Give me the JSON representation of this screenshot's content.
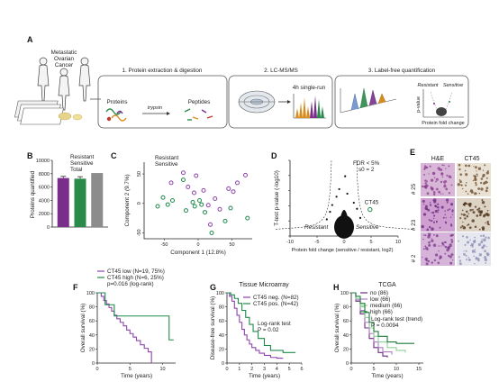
{
  "figure": {
    "panel_labels": [
      "A",
      "B",
      "C",
      "D",
      "E",
      "F",
      "G",
      "H"
    ],
    "A": {
      "cohort_label": [
        "Metastatic",
        "Ovarian",
        "Cancer"
      ],
      "steps": [
        {
          "title": "1. Protein extraction & digestion",
          "labels": [
            "Proteins",
            "trypsin",
            "Peptides"
          ]
        },
        {
          "title": "2. LC-MS/MS",
          "labels": [
            "4h single-run"
          ]
        },
        {
          "title": "3. Label-free quantification",
          "labels": [
            "Resistant",
            "Sensitive",
            "Protein fold change",
            "p-value"
          ]
        }
      ]
    },
    "E": {
      "headers": [
        "H&E",
        "CT45"
      ],
      "rows": [
        "# 25",
        "# 23",
        "# 2"
      ]
    }
  },
  "chart_data": [
    {
      "panel": "B",
      "type": "bar",
      "categories": [
        "Resistant",
        "Sensitive",
        "Total"
      ],
      "values": [
        7350,
        7250,
        8100
      ],
      "errors": [
        250,
        300,
        0
      ],
      "legend": [
        "Resistant",
        "Sensitive",
        "Total"
      ],
      "ylabel": "Proteins quantified",
      "ylim": [
        0,
        10000
      ],
      "yticks": [
        "0",
        "2000",
        "4000",
        "6000",
        "8000",
        "10000"
      ],
      "colors": [
        "#7b2d8b",
        "#2a8a4a",
        "#8c8c8c"
      ]
    },
    {
      "panel": "C",
      "type": "scatter",
      "xlabel": "Component 1 (12.8%)",
      "ylabel": "Component 2 (9.7%)",
      "xlim": [
        -80,
        80
      ],
      "ylim": [
        -60,
        70
      ],
      "xticks": [
        "-50",
        "0",
        "50"
      ],
      "yticks": [
        "-50",
        "0",
        "50"
      ],
      "series": [
        {
          "name": "Resistant",
          "color": "#8e44ad",
          "points": [
            [
              -22,
              52
            ],
            [
              -3,
              47
            ],
            [
              -15,
              28
            ],
            [
              8,
              22
            ],
            [
              45,
              25
            ],
            [
              52,
              20
            ],
            [
              58,
              35
            ],
            [
              15,
              -3
            ],
            [
              -40,
              35
            ],
            [
              25,
              8
            ],
            [
              -6,
              18
            ],
            [
              32,
              -10
            ],
            [
              18,
              -36
            ],
            [
              70,
              48
            ]
          ]
        },
        {
          "name": "Sensitive",
          "color": "#1f8a4c",
          "points": [
            [
              -52,
              10
            ],
            [
              -45,
              -2
            ],
            [
              -60,
              -5
            ],
            [
              -38,
              5
            ],
            [
              -8,
              2
            ],
            [
              -5,
              -5
            ],
            [
              2,
              5
            ],
            [
              5,
              -2
            ],
            [
              -18,
              -12
            ],
            [
              10,
              -15
            ],
            [
              -22,
              40
            ],
            [
              48,
              -8
            ],
            [
              73,
              -25
            ],
            [
              40,
              -30
            ],
            [
              20,
              -50
            ]
          ]
        }
      ]
    },
    {
      "panel": "D",
      "type": "scatter",
      "xlabel": "Protein fold change (sensitive / resistant, log2)",
      "ylabel": "T-test p-value (-log10)",
      "xlim": [
        -10,
        10
      ],
      "ylim": [
        0,
        10
      ],
      "xticks": [
        "-10",
        "-5",
        "0",
        "5",
        "10"
      ],
      "yticks": [
        "0",
        "2",
        "4",
        "6",
        "8",
        "10"
      ],
      "annotations": [
        "FDR < 5%",
        "s0 = 2",
        "CT45",
        "Resistant",
        "Sensitive"
      ],
      "highlight": {
        "name": "CT45",
        "x": 4.8,
        "y": 3.5
      }
    },
    {
      "panel": "F",
      "type": "line",
      "xlabel": "Time (years)",
      "ylabel": "Overall survival (%)",
      "xlim": [
        0,
        12
      ],
      "ylim": [
        0,
        100
      ],
      "xticks": [
        "0",
        "5",
        "10"
      ],
      "yticks": [
        "0",
        "20",
        "40",
        "60",
        "80",
        "100"
      ],
      "legend_title": "",
      "notes": [
        "p=0.016 (log-rank)"
      ],
      "series": [
        {
          "name": "CT45 low (N=19, 75%)",
          "color": "#8e44ad",
          "x": [
            0,
            0.6,
            1.0,
            1.4,
            1.8,
            2.2,
            2.6,
            3.0,
            3.5,
            4.0,
            4.5,
            5.0,
            5.5,
            6.0,
            6.6,
            7.2,
            7.8,
            8.3
          ],
          "y": [
            100,
            95,
            89,
            84,
            79,
            74,
            68,
            63,
            58,
            53,
            47,
            42,
            37,
            32,
            26,
            21,
            16,
            0
          ]
        },
        {
          "name": "CT45 high (N=6, 25%)",
          "color": "#1f8a4c",
          "x": [
            0,
            1.2,
            2.6,
            4.5,
            9.5,
            11.0,
            11.7
          ],
          "y": [
            100,
            83,
            67,
            67,
            67,
            33,
            33
          ]
        }
      ]
    },
    {
      "panel": "G",
      "type": "line",
      "title": "Tissue Microarray",
      "xlabel": "Time (years)",
      "ylabel": "Disease-free survival (%)",
      "xlim": [
        0,
        6
      ],
      "ylim": [
        0,
        100
      ],
      "xticks": [
        "0",
        "1",
        "2",
        "3",
        "4",
        "5",
        "6"
      ],
      "yticks": [
        "0",
        "20",
        "40",
        "60",
        "80",
        "100"
      ],
      "notes": [
        "Log-rank test",
        "P = 0.02"
      ],
      "series": [
        {
          "name": "CT45 neg. (N=82)",
          "color": "#8e44ad",
          "x": [
            0,
            0.2,
            0.4,
            0.6,
            0.8,
            1.0,
            1.2,
            1.4,
            1.6,
            1.8,
            2.0,
            2.3,
            2.6,
            3.0,
            3.5,
            4.0,
            4.5
          ],
          "y": [
            100,
            95,
            88,
            78,
            68,
            58,
            48,
            40,
            33,
            27,
            22,
            18,
            14,
            11,
            8,
            7,
            7
          ]
        },
        {
          "name": "CT45 pos. (N=42)",
          "color": "#1f8a4c",
          "x": [
            0,
            0.3,
            0.6,
            0.9,
            1.2,
            1.5,
            1.8,
            2.1,
            2.5,
            3.0,
            3.5,
            4.5,
            5.5
          ],
          "y": [
            100,
            97,
            92,
            85,
            75,
            65,
            55,
            45,
            35,
            25,
            18,
            15,
            15
          ]
        }
      ]
    },
    {
      "panel": "H",
      "type": "line",
      "title": "TCGA",
      "xlabel": "Time (years)",
      "ylabel": "Overall survival (%)",
      "xlim": [
        0,
        16
      ],
      "ylim": [
        0,
        100
      ],
      "xticks": [
        "0",
        "5",
        "10",
        "15"
      ],
      "yticks": [
        "0",
        "20",
        "40",
        "60",
        "80",
        "100"
      ],
      "notes": [
        "Log-rank test (trend)",
        "P = 0.0094"
      ],
      "series": [
        {
          "name": "no (86)",
          "color": "#6c2c82",
          "x": [
            0,
            1,
            2,
            3,
            4,
            5,
            6,
            7,
            8
          ],
          "y": [
            100,
            88,
            70,
            50,
            35,
            22,
            15,
            10,
            8
          ]
        },
        {
          "name": "low (66)",
          "color": "#b07cc6",
          "x": [
            0,
            1,
            2,
            3,
            4,
            5,
            6,
            7,
            9
          ],
          "y": [
            100,
            90,
            75,
            58,
            42,
            30,
            22,
            16,
            12
          ]
        },
        {
          "name": "medium (66)",
          "color": "#8fcf9a",
          "x": [
            0,
            1,
            2,
            3,
            4,
            5,
            6,
            8,
            10,
            12
          ],
          "y": [
            100,
            92,
            80,
            65,
            50,
            38,
            30,
            22,
            18,
            15
          ]
        },
        {
          "name": "high (66)",
          "color": "#1f7a3c",
          "x": [
            0,
            1,
            2,
            3,
            4,
            5,
            6,
            8,
            10,
            12,
            14
          ],
          "y": [
            100,
            95,
            85,
            72,
            58,
            45,
            38,
            30,
            28,
            28,
            28
          ]
        }
      ]
    }
  ]
}
